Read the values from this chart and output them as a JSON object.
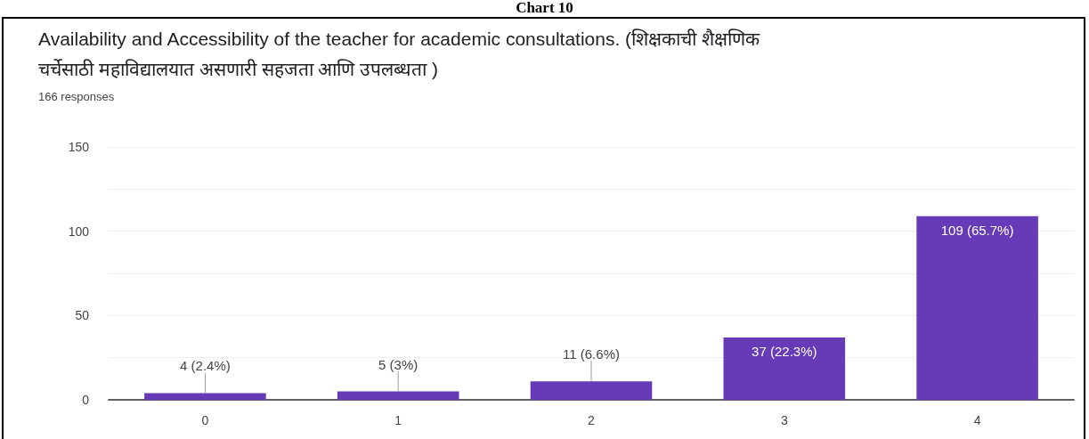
{
  "chart_data": {
    "type": "bar",
    "title": "Availability and Accessibility of the teacher for academic consultations. (शिक्षकाची शैक्षणिक चर्चेसाठी महाविद्यालयात असणारी सहजता आणि उपलब्धता )",
    "subtitle": "166 responses",
    "annotations": [
      "Chart 10"
    ],
    "categories": [
      "0",
      "1",
      "2",
      "3",
      "4"
    ],
    "values": [
      4,
      5,
      11,
      37,
      109
    ],
    "value_labels": [
      "4 (2.4%)",
      "5 (3%)",
      "11 (6.6%)",
      "37 (22.3%)",
      "109 (65.7%)"
    ],
    "color": "#673ab7",
    "ylim": [
      0,
      150
    ],
    "yticks": [
      0,
      {
        "value": 25,
        "label": null
      },
      50,
      {
        "value": 75,
        "label": null
      },
      100,
      {
        "value": 125,
        "label": null
      },
      150
    ],
    "grid": "y"
  }
}
